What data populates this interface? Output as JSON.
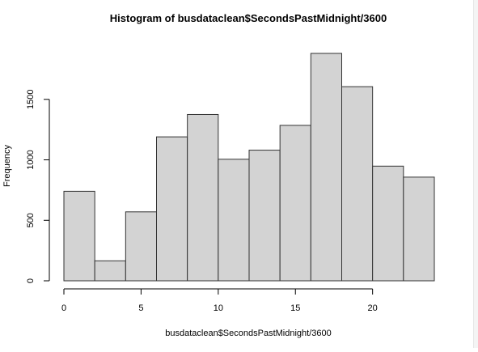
{
  "chart_data": {
    "type": "bar",
    "title": "Histogram of busdataclean$SecondsPastMidnight/3600",
    "xlabel": "busdataclean$SecondsPastMidnight/3600",
    "ylabel": "Frequency",
    "bin_edges": [
      0,
      2,
      4,
      6,
      8,
      10,
      12,
      14,
      16,
      18,
      20,
      22,
      24
    ],
    "values": [
      740,
      165,
      570,
      1190,
      1375,
      1005,
      1080,
      1285,
      1880,
      1605,
      948,
      857
    ],
    "xlim": [
      0,
      24
    ],
    "ylim": [
      0,
      1900
    ],
    "xticks": [
      0,
      5,
      10,
      15,
      20
    ],
    "yticks": [
      0,
      500,
      1000,
      1500
    ],
    "grid": false,
    "bar_fill": "#d3d3d3",
    "bar_stroke": "#333333"
  }
}
